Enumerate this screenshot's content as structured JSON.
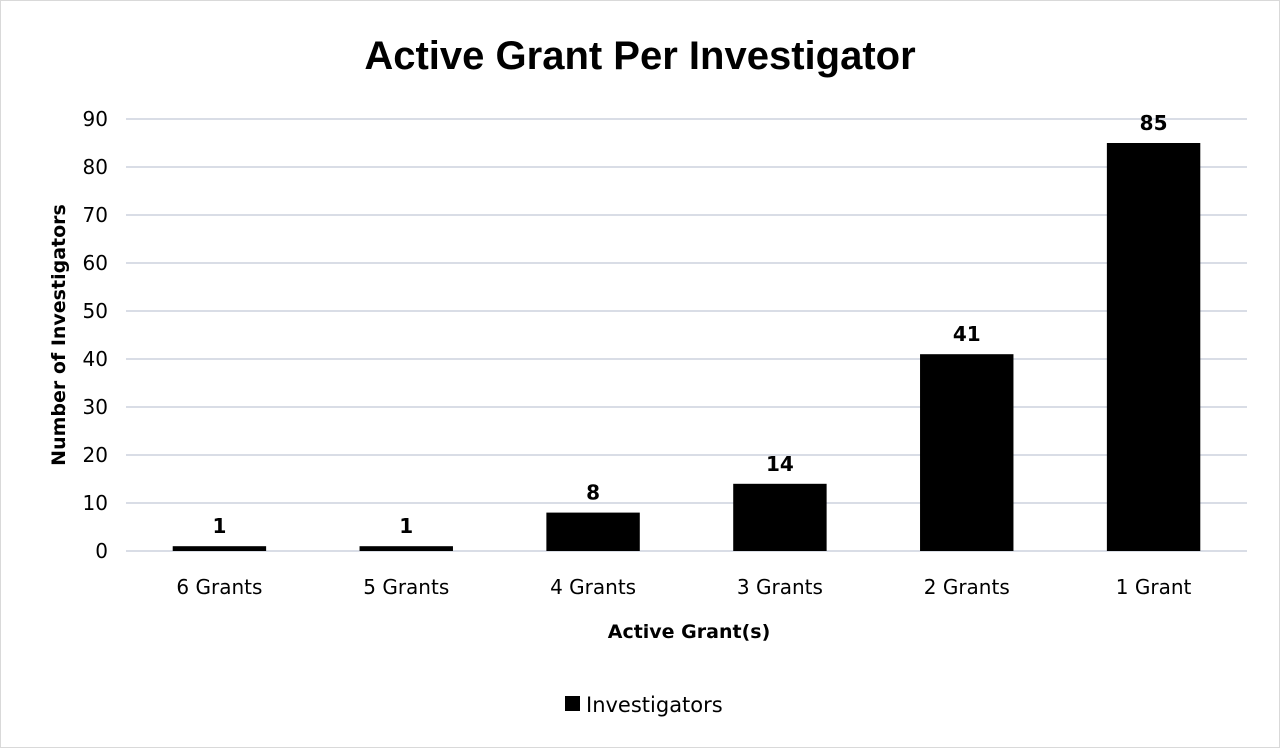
{
  "chart_data": {
    "type": "bar",
    "title": "Active Grant Per Investigator",
    "xlabel": "Active Grant(s)",
    "ylabel": "Number of Investigators",
    "categories": [
      "6 Grants",
      "5 Grants",
      "4 Grants",
      "3 Grants",
      "2 Grants",
      "1 Grant"
    ],
    "series": [
      {
        "name": "Investigators",
        "values": [
          1,
          1,
          8,
          14,
          41,
          85
        ],
        "color": "#000000"
      }
    ],
    "ylim": [
      0,
      90
    ],
    "yticks": [
      "0",
      "10",
      "20",
      "30",
      "40",
      "50",
      "60",
      "70",
      "80",
      "90"
    ],
    "grid": true,
    "data_labels": true,
    "legend_position": "bottom"
  }
}
